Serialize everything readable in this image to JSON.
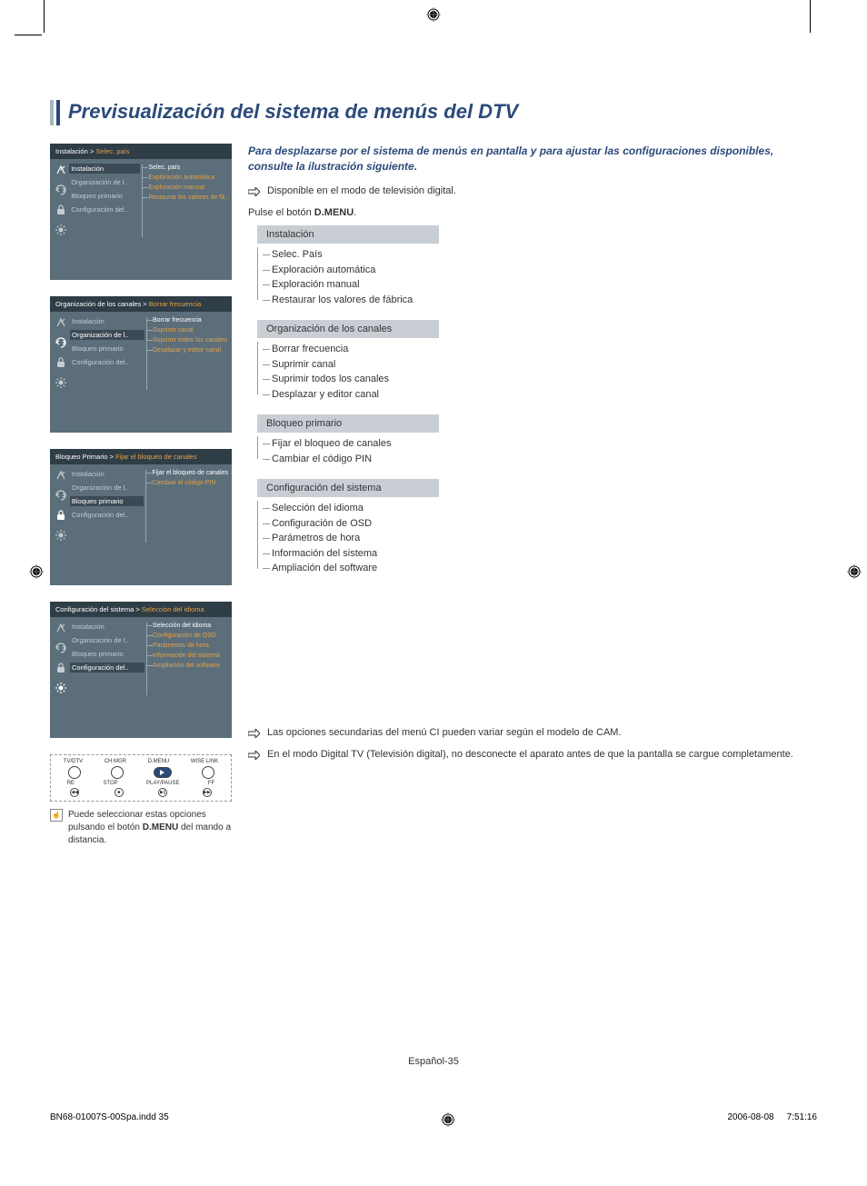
{
  "page": {
    "title": "Previsualización del sistema de menús del DTV",
    "footer_page": "Español-35",
    "footer_file": "BN68-01007S-00Spa.indd   35",
    "footer_date": "2006-08-08",
    "footer_time": "7:51:16"
  },
  "colors": {
    "brand_blue": "#2b4a7a",
    "panel_bg": "#5b6e7a",
    "panel_header": "#2f3d46",
    "highlight": "#e4a24a",
    "tree_header_bg": "#c8ced4"
  },
  "panels": [
    {
      "breadcrumb_a": "Instalación > ",
      "breadcrumb_b": "Selec. país",
      "active_index": 0,
      "items": [
        "Instalación",
        "Organización de l..",
        "Bloqueo primario",
        "Configuración del.."
      ],
      "sub": [
        {
          "label": "Selec. país",
          "active": true
        },
        {
          "label": "Exploración automática"
        },
        {
          "label": "Exploración manual"
        },
        {
          "label": "Restaurar los valores de fá.."
        }
      ]
    },
    {
      "breadcrumb_a": "Organización de los canales > ",
      "breadcrumb_b": "Borrar frecuencia",
      "active_index": 1,
      "items": [
        "Instalación",
        "Organización de l..",
        "Bloqueo primario",
        "Configuración del.."
      ],
      "sub": [
        {
          "label": "Borrar frecuencia",
          "active": true
        },
        {
          "label": "Suprimir canal"
        },
        {
          "label": "Suprimir todos los canales"
        },
        {
          "label": "Desplazar y editor canal"
        }
      ]
    },
    {
      "breadcrumb_a": "Bloqueo Primario > ",
      "breadcrumb_b": "Fijar el bloqueo de canales",
      "active_index": 2,
      "items": [
        "Instalación",
        "Organización de l..",
        "Bloqueo primario",
        "Configuración del.."
      ],
      "sub": [
        {
          "label": "Fijar el bloqueo de canales",
          "active": true
        },
        {
          "label": "Cambiar el código PIN"
        }
      ]
    },
    {
      "breadcrumb_a": "Configuración del sistema > ",
      "breadcrumb_b": "Selección del idioma",
      "active_index": 3,
      "items": [
        "Instalación",
        "Organización de l..",
        "Bloqueo primario",
        "Configuración del.."
      ],
      "sub": [
        {
          "label": "Selección del idioma",
          "active": true
        },
        {
          "label": "Configuración de OSD"
        },
        {
          "label": "Parámetros de hora"
        },
        {
          "label": "Información del sistema"
        },
        {
          "label": "Ampliación del software"
        }
      ]
    }
  ],
  "remote": {
    "labels_top": [
      "TV/DTV",
      "CH MGR",
      "D.MENU",
      "WISE LINK"
    ],
    "labels_mid": [
      "RE",
      "STOP",
      "PLAY/PAUSE",
      "FF"
    ],
    "small_btns": [
      "◀◀",
      "■",
      "▶||",
      "▶▶"
    ],
    "note_a": "Puede seleccionar estas opciones pulsando el botón ",
    "note_b": "D.MENU",
    "note_c": " del mando a distancia."
  },
  "right": {
    "intro": "Para desplazarse por el sistema de menús en pantalla y para ajustar las configuraciones disponibles, consulte la ilustración siguiente.",
    "avail": "Disponible en el modo de televisión digital.",
    "press_a": "Pulse el botón ",
    "press_b": "D.MENU",
    "press_c": ".",
    "sections": [
      {
        "header": "Instalación",
        "items": [
          "Selec. País",
          "Exploración automática",
          "Exploración manual",
          "Restaurar los valores de fábrica"
        ]
      },
      {
        "header": "Organización de los canales",
        "items": [
          "Borrar frecuencia",
          "Suprimir canal",
          "Suprimir todos los canales",
          "Desplazar y editor canal"
        ]
      },
      {
        "header": "Bloqueo primario",
        "items": [
          "Fijar el bloqueo de canales",
          "Cambiar el código PIN"
        ]
      },
      {
        "header": "Configuración del sistema",
        "items": [
          "Selección del idioma",
          "Configuración de OSD",
          "Parámetros de hora",
          "Información del sistema",
          "Ampliación del software"
        ]
      }
    ],
    "notes": [
      "Las opciones secundarias del menú CI pueden variar según el modelo de CAM.",
      "En el modo Digital TV (Televisión digital), no desconecte el aparato antes de que la pantalla se cargue completamente."
    ]
  }
}
